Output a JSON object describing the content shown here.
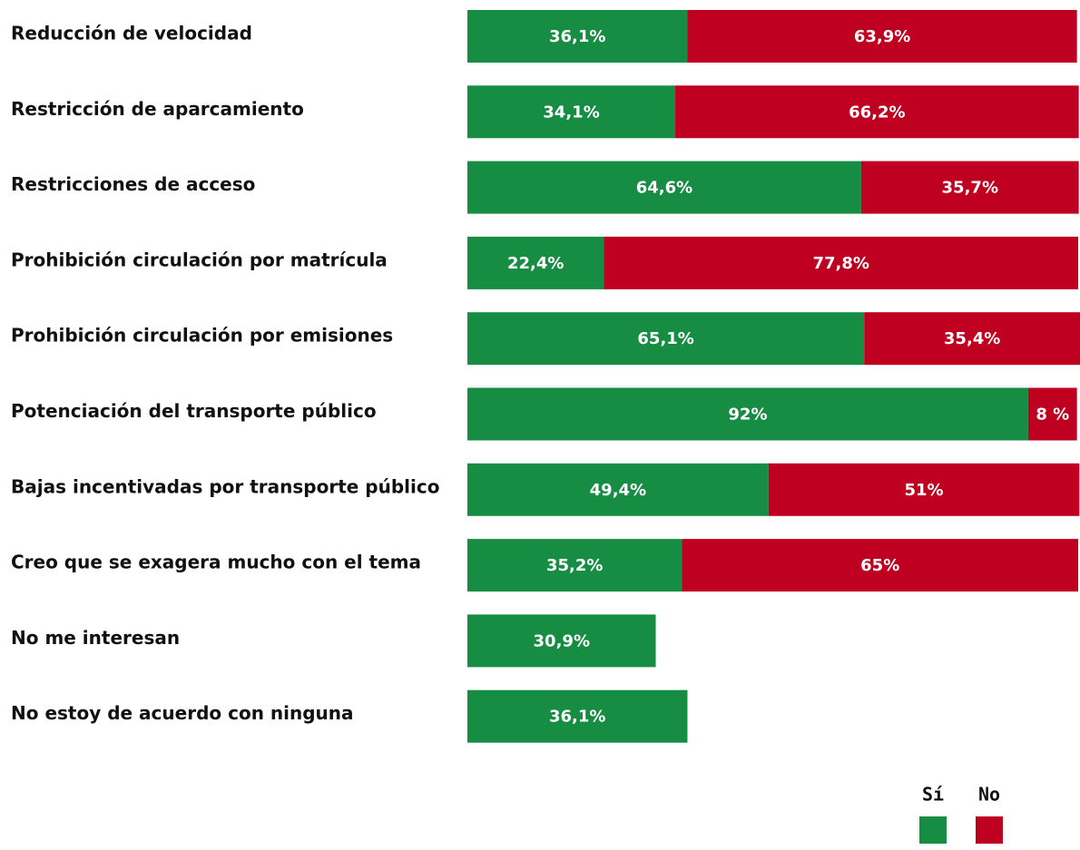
{
  "chart_data": {
    "type": "stacked-bar",
    "categories": [
      "Reducción de velocidad",
      "Restricción de aparcamiento",
      "Restricciones de acceso",
      "Prohibición circulación por matrícula",
      "Prohibición circulación por emisiones",
      "Potenciación del transporte público",
      "Bajas incentivadas por transporte público",
      "Creo que se exagera mucho con el tema",
      "No me interesan",
      "No estoy de acuerdo con ninguna"
    ],
    "series": [
      {
        "name": "Sí",
        "color": "#168d43",
        "values": [
          36.1,
          34.1,
          64.6,
          22.4,
          65.1,
          92,
          49.4,
          35.2,
          30.9,
          36.1
        ],
        "value_labels": [
          "36,1%",
          "34,1%",
          "64,6%",
          "22,4%",
          "65,1%",
          "92%",
          "49,4%",
          "35,2%",
          "30,9%",
          "36,1%"
        ]
      },
      {
        "name": "No",
        "color": "#c00020",
        "values": [
          63.9,
          66.2,
          35.7,
          77.8,
          35.4,
          8,
          51,
          65,
          null,
          null
        ],
        "value_labels": [
          "63,9%",
          "66,2%",
          "35,7%",
          "77,8%",
          "35,4%",
          "8 %",
          "51%",
          "65%",
          null,
          null
        ]
      }
    ]
  }
}
